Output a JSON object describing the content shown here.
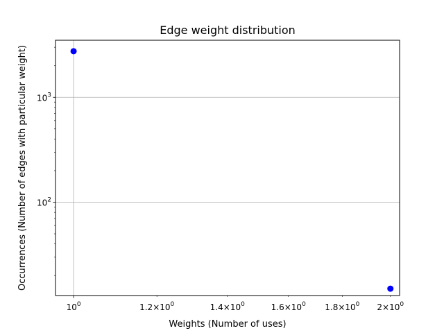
{
  "chart_data": {
    "type": "scatter",
    "title": "Edge weight distribution",
    "xlabel": "Weights (Number of uses)",
    "ylabel": "Occurrences (Number of edges with particular weight)",
    "x_scale": "log",
    "y_scale": "log",
    "xlim": [
      0.9612,
      2.0406
    ],
    "ylim": [
      12.9,
      3500
    ],
    "grid": true,
    "marker_color": "#0000ff",
    "points": [
      {
        "x": 1,
        "y": 2750
      },
      {
        "x": 2,
        "y": 15
      }
    ],
    "x_ticks": [
      {
        "value": 1,
        "mantissa": "",
        "base": "10",
        "exp": "0"
      },
      {
        "value": 1.2,
        "mantissa": "1.2×",
        "base": "10",
        "exp": "0"
      },
      {
        "value": 1.4,
        "mantissa": "1.4×",
        "base": "10",
        "exp": "0"
      },
      {
        "value": 1.6,
        "mantissa": "1.6×",
        "base": "10",
        "exp": "0"
      },
      {
        "value": 1.8,
        "mantissa": "1.8×",
        "base": "10",
        "exp": "0"
      },
      {
        "value": 2,
        "mantissa": "2×",
        "base": "10",
        "exp": "0"
      }
    ],
    "y_ticks": [
      {
        "value": 100,
        "mantissa": "",
        "base": "10",
        "exp": "2"
      },
      {
        "value": 1000,
        "mantissa": "",
        "base": "10",
        "exp": "3"
      }
    ]
  }
}
